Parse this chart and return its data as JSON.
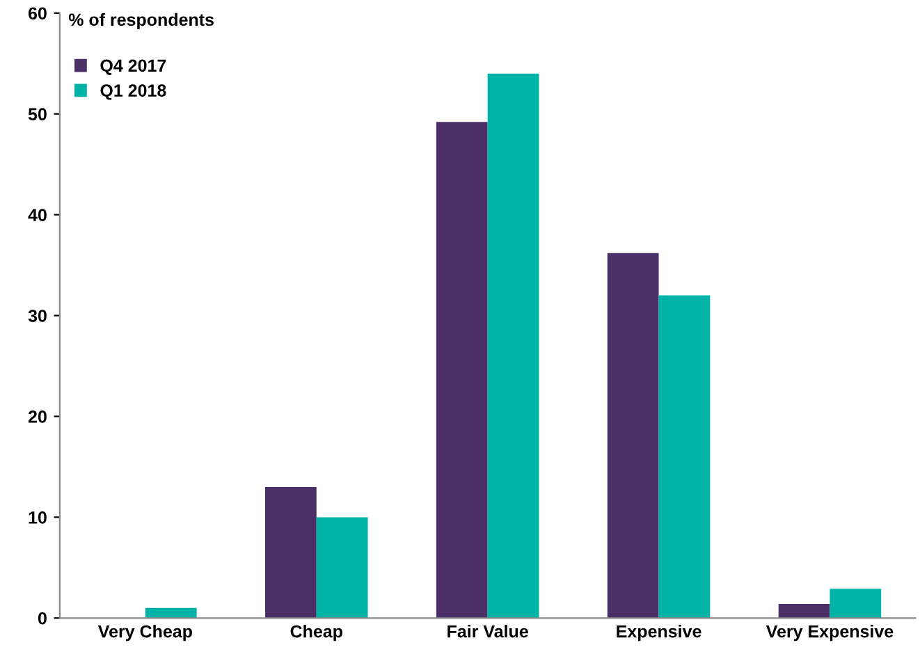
{
  "chart_data": {
    "type": "bar",
    "ylabel": "% of respondents",
    "categories": [
      "Very Cheap",
      "Cheap",
      "Fair Value",
      "Expensive",
      "Very Expensive"
    ],
    "series": [
      {
        "name": "Q4 2017",
        "color": "#4b3068",
        "values": [
          0,
          13,
          49.2,
          36.2,
          1.4
        ]
      },
      {
        "name": "Q1 2018",
        "color": "#00b3a7",
        "values": [
          1,
          10,
          54,
          32,
          2.9
        ]
      }
    ],
    "ylim": [
      0,
      60
    ],
    "yticks": [
      0,
      10,
      20,
      30,
      40,
      50,
      60
    ],
    "grid": false,
    "legend": "top left"
  }
}
